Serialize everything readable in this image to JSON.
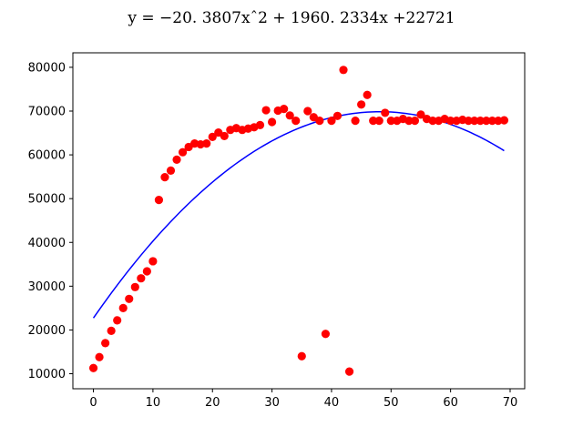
{
  "chart_data": {
    "type": "scatter",
    "title": "y = −20. 3807xˆ2 + 1960. 2334x +22721",
    "xlabel": "",
    "ylabel": "",
    "xlim": [
      -3.45,
      72.45
    ],
    "ylim": [
      6571,
      83312
    ],
    "xticks": [
      0,
      10,
      20,
      30,
      40,
      50,
      60,
      70
    ],
    "yticks": [
      10000,
      20000,
      30000,
      40000,
      50000,
      60000,
      70000,
      80000
    ],
    "grid": false,
    "series": [
      {
        "kind": "scatter",
        "color": "#ff0000",
        "points": [
          [
            0,
            11300
          ],
          [
            1,
            13800
          ],
          [
            2,
            17000
          ],
          [
            3,
            19800
          ],
          [
            4,
            22200
          ],
          [
            5,
            25000
          ],
          [
            6,
            27100
          ],
          [
            7,
            29800
          ],
          [
            8,
            31800
          ],
          [
            9,
            33400
          ],
          [
            10,
            35700
          ],
          [
            11,
            49700
          ],
          [
            12,
            54900
          ],
          [
            13,
            56400
          ],
          [
            14,
            58900
          ],
          [
            15,
            60600
          ],
          [
            16,
            61800
          ],
          [
            17,
            62600
          ],
          [
            18,
            62400
          ],
          [
            19,
            62600
          ],
          [
            20,
            64100
          ],
          [
            21,
            65100
          ],
          [
            22,
            64300
          ],
          [
            23,
            65700
          ],
          [
            24,
            66100
          ],
          [
            25,
            65700
          ],
          [
            26,
            66000
          ],
          [
            27,
            66300
          ],
          [
            28,
            66800
          ],
          [
            29,
            70200
          ],
          [
            30,
            67500
          ],
          [
            31,
            70100
          ],
          [
            32,
            70500
          ],
          [
            33,
            69000
          ],
          [
            34,
            67800
          ],
          [
            35,
            14000
          ],
          [
            36,
            70000
          ],
          [
            37,
            68600
          ],
          [
            38,
            67800
          ],
          [
            39,
            19100
          ],
          [
            40,
            67800
          ],
          [
            41,
            68900
          ],
          [
            42,
            79400
          ],
          [
            43,
            10500
          ],
          [
            44,
            67800
          ],
          [
            45,
            71500
          ],
          [
            46,
            73700
          ],
          [
            47,
            67800
          ],
          [
            48,
            67800
          ],
          [
            49,
            69600
          ],
          [
            50,
            67800
          ],
          [
            51,
            67800
          ],
          [
            52,
            68200
          ],
          [
            53,
            67800
          ],
          [
            54,
            67800
          ],
          [
            55,
            69200
          ],
          [
            56,
            68200
          ],
          [
            57,
            67800
          ],
          [
            58,
            67800
          ],
          [
            59,
            68200
          ],
          [
            60,
            67800
          ],
          [
            61,
            67800
          ],
          [
            62,
            68000
          ],
          [
            63,
            67800
          ],
          [
            64,
            67800
          ],
          [
            65,
            67800
          ],
          [
            66,
            67800
          ],
          [
            67,
            67800
          ],
          [
            68,
            67800
          ],
          [
            69,
            67900
          ]
        ]
      },
      {
        "kind": "line",
        "color": "#0000ff",
        "coefficients": {
          "a": -20.3807,
          "b": 1960.2334,
          "c": 22721
        },
        "x_range": [
          0,
          69
        ]
      }
    ],
    "colors": {
      "axes": "#000000",
      "background": "#ffffff"
    }
  }
}
